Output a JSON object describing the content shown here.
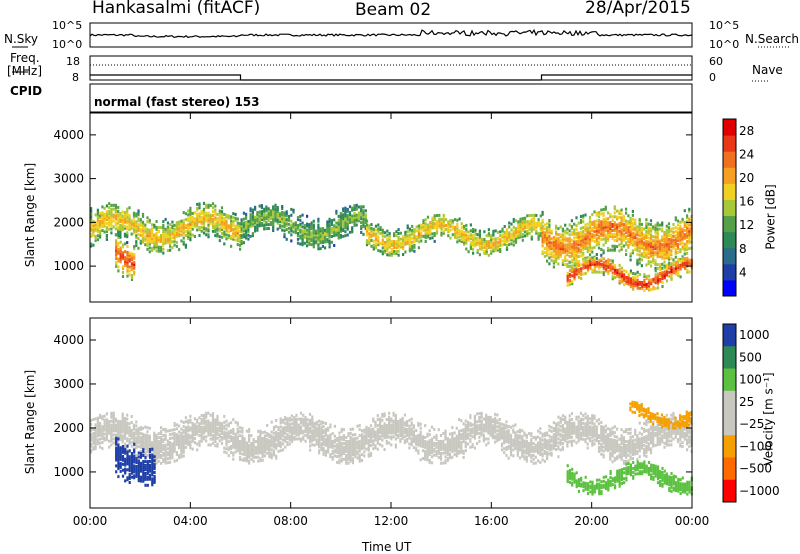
{
  "header": {
    "station": "Hankasalmi (fitACF)",
    "beam": "Beam 02",
    "date": "28/Apr/2015"
  },
  "side_labels": {
    "nsky": "N.Sky",
    "nsearch": "N.Search",
    "freq_line1": "Freq.",
    "freq_line2": "[MHz]",
    "nave": "Nave",
    "cpid": "CPID"
  },
  "noise_panel": {
    "left_ticks": [
      "10^5",
      "10^0"
    ],
    "right_ticks": [
      "10^5",
      "10^0"
    ]
  },
  "freq_panel": {
    "left_ticks": [
      "18",
      "8"
    ],
    "right_ticks": [
      "60",
      "0"
    ]
  },
  "cpid_panel": {
    "text": "normal (fast stereo) 153"
  },
  "colors": {
    "power_scale": [
      "#0000ff",
      "#1f3fa6",
      "#2b6b8c",
      "#2d8a56",
      "#54a048",
      "#a8c83a",
      "#f0d020",
      "#f5a020",
      "#f07020",
      "#e83818",
      "#e00000"
    ],
    "velocity_scale": [
      "#ff0000",
      "#ff6a00",
      "#f5a000",
      "#c8c8c0",
      "#c8c8c0",
      "#5cc040",
      "#2d8a56",
      "#1f3fa6"
    ]
  },
  "chart_data": [
    {
      "type": "heatmap",
      "name": "Power",
      "xlabel": "Time UT",
      "ylabel": "Slant Range [km]",
      "x_ticks": [
        "00:00",
        "04:00",
        "08:00",
        "12:00",
        "16:00",
        "20:00",
        "00:00"
      ],
      "xlim_hours": [
        0,
        24
      ],
      "y_ticks": [
        1000,
        2000,
        3000,
        4000
      ],
      "ylim": [
        180,
        4500
      ],
      "colorbar_label": "Power [dB]",
      "colorbar_ticks": [
        4,
        8,
        12,
        16,
        20,
        24,
        28
      ],
      "colorbar_range": [
        0,
        30
      ],
      "echo_bands": [
        {
          "t_start": 0.0,
          "t_end": 6.0,
          "range_center_km": 1900,
          "width_km": 450,
          "power_db": 20
        },
        {
          "t_start": 1.0,
          "t_end": 1.8,
          "range_center_km": 1250,
          "width_km": 450,
          "power_db": 27
        },
        {
          "t_start": 6.0,
          "t_end": 11.0,
          "range_center_km": 1950,
          "width_km": 400,
          "power_db": 14
        },
        {
          "t_start": 11.0,
          "t_end": 18.0,
          "range_center_km": 1750,
          "width_km": 350,
          "power_db": 20
        },
        {
          "t_start": 18.0,
          "t_end": 24.0,
          "range_center_km": 1700,
          "width_km": 600,
          "power_db": 24
        },
        {
          "t_start": 19.0,
          "t_end": 24.0,
          "range_center_km": 850,
          "width_km": 250,
          "power_db": 28
        }
      ]
    },
    {
      "type": "heatmap",
      "name": "Velocity",
      "xlabel": "Time UT",
      "ylabel": "Slant Range [km]",
      "x_ticks": [
        "00:00",
        "04:00",
        "08:00",
        "12:00",
        "16:00",
        "20:00",
        "00:00"
      ],
      "xlim_hours": [
        0,
        24
      ],
      "y_ticks": [
        1000,
        2000,
        3000,
        4000
      ],
      "ylim": [
        180,
        4500
      ],
      "colorbar_label": "Velocity [m s⁻¹]",
      "colorbar_ticks": [
        "1000",
        "500",
        "100",
        "25",
        "−25",
        "−100",
        "−500",
        "−1000"
      ],
      "echo_bands": [
        {
          "t_start": 0.0,
          "t_end": 24.0,
          "range_center_km": 1800,
          "width_km": 450,
          "velocity_ms": 0
        },
        {
          "t_start": 1.0,
          "t_end": 2.6,
          "range_center_km": 1350,
          "width_km": 500,
          "velocity_ms": 800
        },
        {
          "t_start": 19.0,
          "t_end": 24.0,
          "range_center_km": 900,
          "width_km": 250,
          "velocity_ms": 150
        },
        {
          "t_start": 21.5,
          "t_end": 24.0,
          "range_center_km": 2350,
          "width_km": 200,
          "velocity_ms": -200
        }
      ]
    }
  ]
}
